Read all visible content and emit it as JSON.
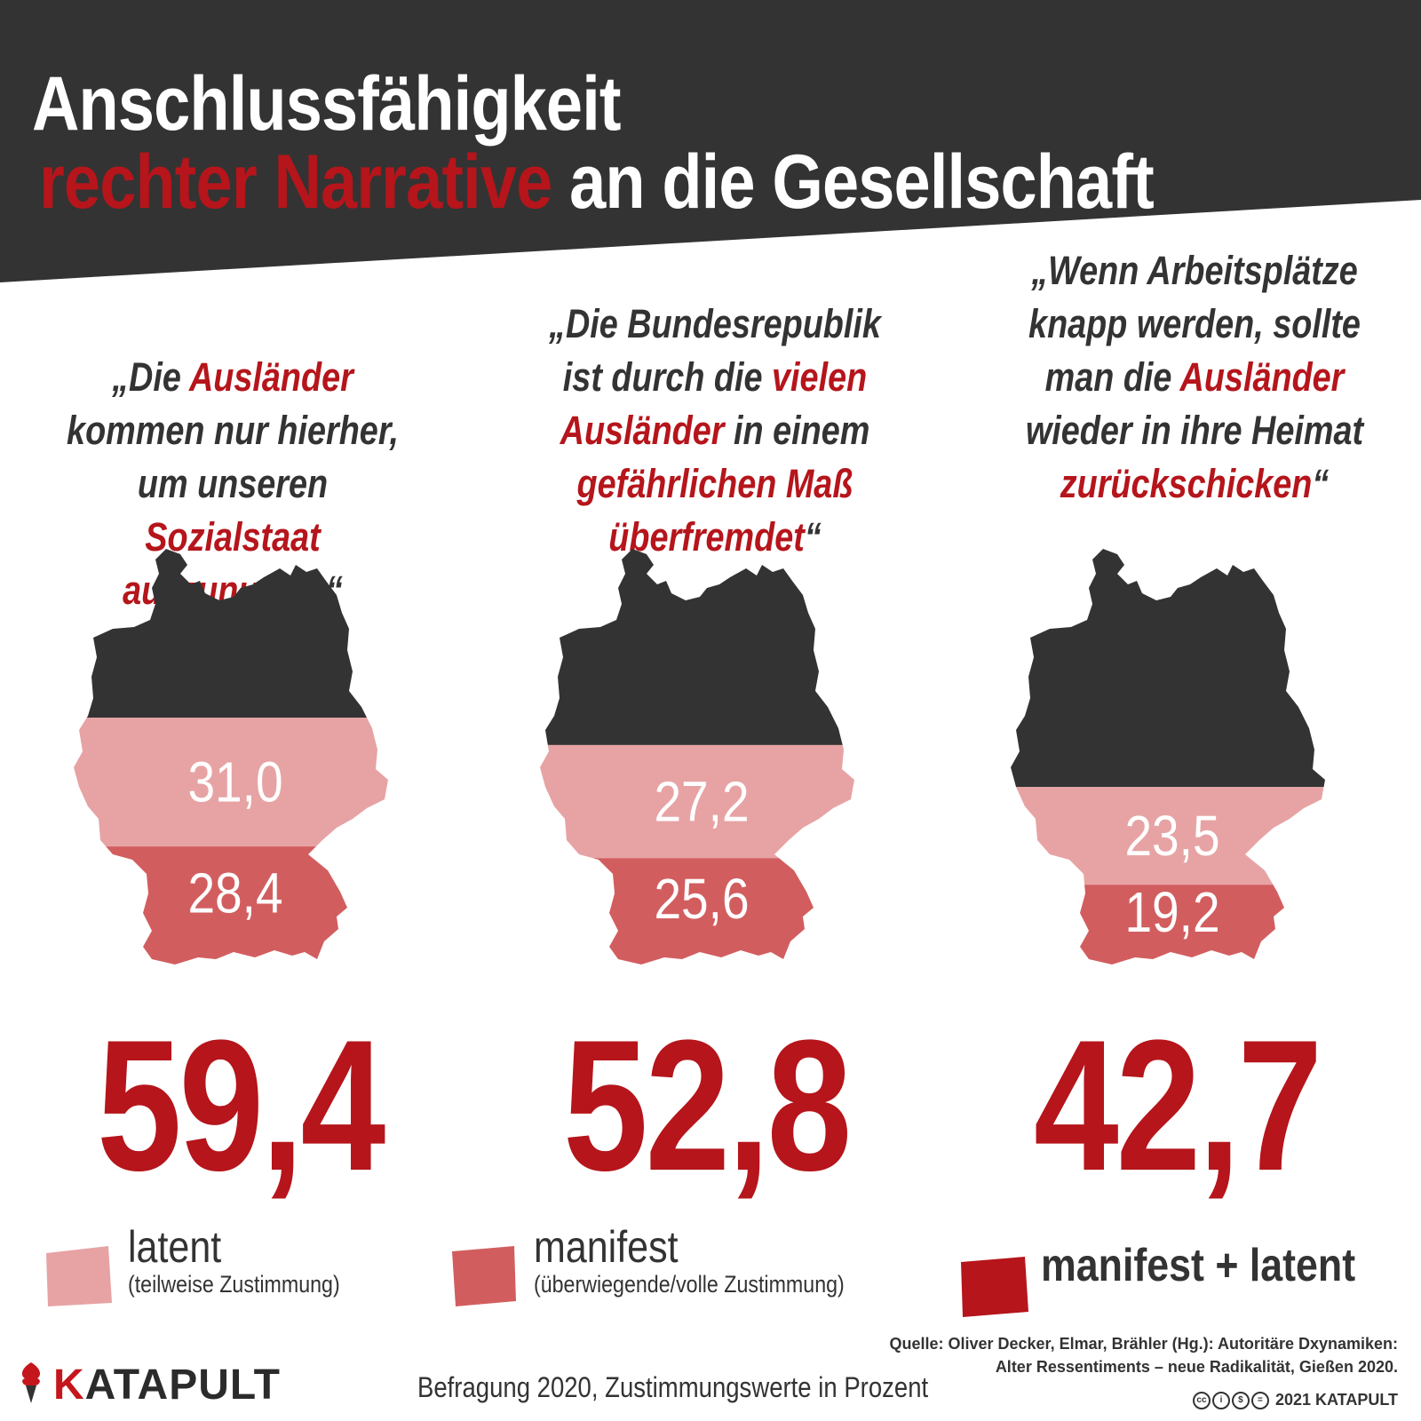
{
  "colors": {
    "banner": "#333333",
    "accent_red": "#b5151b",
    "latent": "#e7a3a4",
    "manifest": "#d25d5f",
    "dark": "#333333"
  },
  "title": {
    "line1": "Anschlussfähigkeit",
    "line2_red": "rechter Narrative",
    "line2_white": " an die Gesellschaft"
  },
  "chart_data": {
    "type": "stacked-area-map",
    "title": "Anschlussfähigkeit rechter Narrative an die Gesellschaft",
    "unit": "Prozent",
    "series": [
      {
        "name": "latent",
        "description": "(teilweise Zustimmung)"
      },
      {
        "name": "manifest",
        "description": "(überwiegende/volle Zustimmung)"
      }
    ],
    "panels": [
      {
        "quote": {
          "parts": [
            {
              "text": "„Die ",
              "hl": false
            },
            {
              "text": "Ausländer",
              "hl": true
            },
            {
              "text": " kommen nur hierher, um unseren ",
              "hl": false
            },
            {
              "text": "Sozialstaat auszunutzen",
              "hl": true
            },
            {
              "text": "“",
              "hl": false
            }
          ]
        },
        "latent": 31.0,
        "latent_label": "31,0",
        "manifest": 28.4,
        "manifest_label": "28,4",
        "total": 59.4,
        "total_label": "59,4"
      },
      {
        "quote": {
          "parts": [
            {
              "text": "„Die Bundesrepublik ist durch die ",
              "hl": false
            },
            {
              "text": "vielen Ausländer",
              "hl": true
            },
            {
              "text": " in einem ",
              "hl": false
            },
            {
              "text": "gefährlichen Maß überfremdet",
              "hl": true
            },
            {
              "text": "“",
              "hl": false
            }
          ]
        },
        "latent": 27.2,
        "latent_label": "27,2",
        "manifest": 25.6,
        "manifest_label": "25,6",
        "total": 52.8,
        "total_label": "52,8"
      },
      {
        "quote": {
          "parts": [
            {
              "text": "„Wenn Arbeitsplätze knapp werden, sollte man die ",
              "hl": false
            },
            {
              "text": "Ausländer",
              "hl": true
            },
            {
              "text": " wieder in ihre Heimat ",
              "hl": false
            },
            {
              "text": "zurückschicken",
              "hl": true
            },
            {
              "text": "“",
              "hl": false
            }
          ]
        },
        "latent": 23.5,
        "latent_label": "23,5",
        "manifest": 19.2,
        "manifest_label": "19,2",
        "total": 42.7,
        "total_label": "42,7"
      }
    ]
  },
  "legend": {
    "latent_title": "latent",
    "latent_sub": "(teilweise Zustimmung)",
    "manifest_title": "manifest",
    "manifest_sub": "(überwiegende/volle Zustimmung)",
    "total_title": "manifest + latent"
  },
  "brand": {
    "k": "K",
    "rest": "ATAPULT"
  },
  "footer": "Befragung 2020, Zustimmungswerte in Prozent",
  "source": {
    "line1": "Quelle: Oliver Decker, Elmar, Brähler (Hg.): Autoritäre Dxynamiken:",
    "line2": "Alter Ressentiments – neue Radikalität, Gießen 2020."
  },
  "copyright": "2021 KATAPULT"
}
